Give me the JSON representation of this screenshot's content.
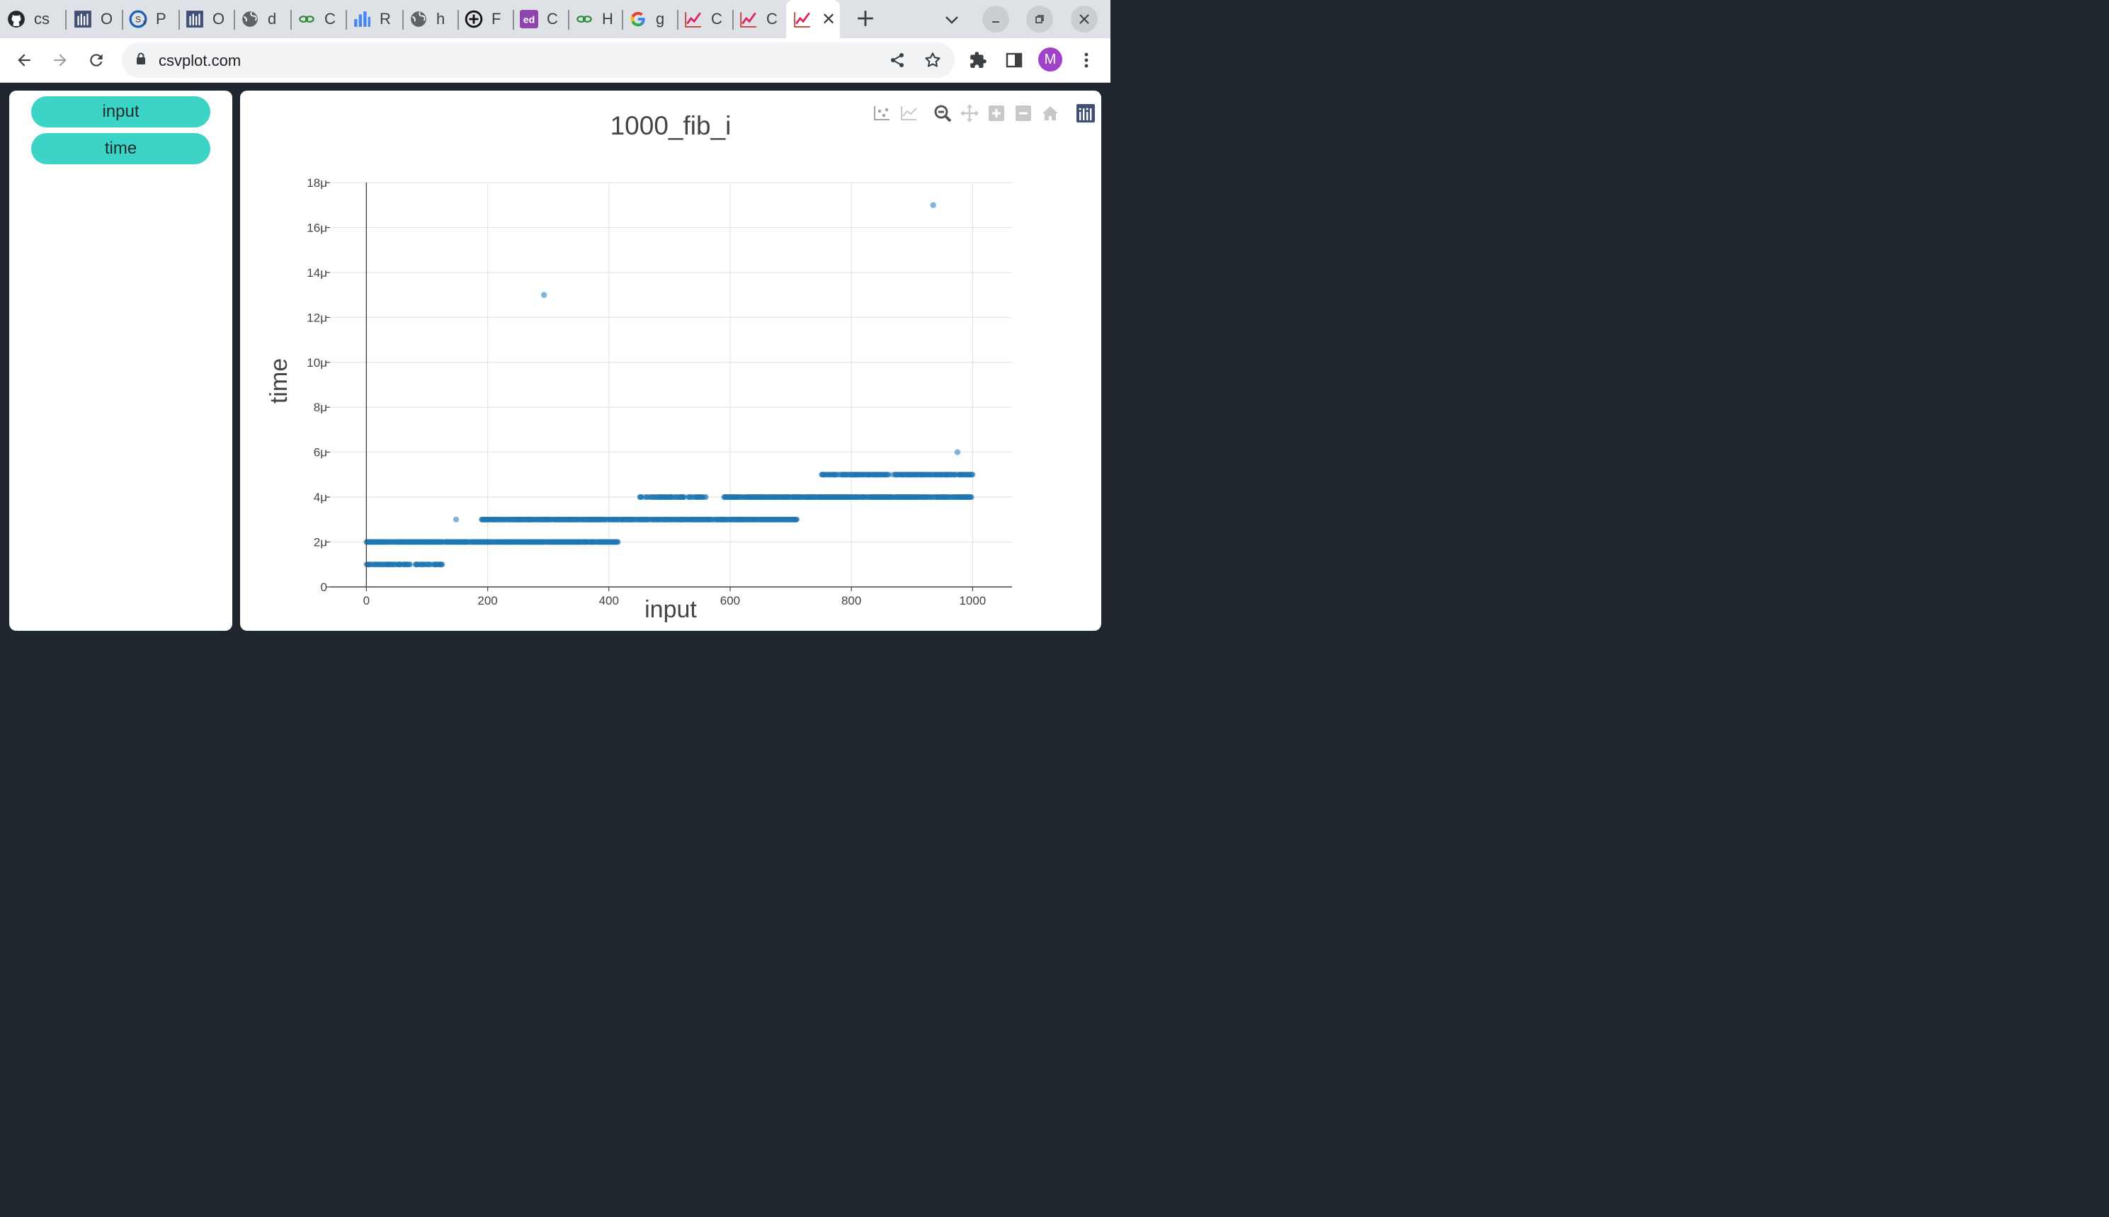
{
  "browser": {
    "tabs": [
      {
        "title": "cs",
        "icon": "github-icon"
      },
      {
        "title": "O",
        "icon": "grid-logo-icon"
      },
      {
        "title": "P",
        "icon": "globe-x-icon"
      },
      {
        "title": "O",
        "icon": "grid-logo-icon"
      },
      {
        "title": "d",
        "icon": "globe-icon"
      },
      {
        "title": "C",
        "icon": "link-green-icon"
      },
      {
        "title": "R",
        "icon": "bar-chart-icon"
      },
      {
        "title": "h",
        "icon": "globe-icon"
      },
      {
        "title": "F",
        "icon": "plus-circle-icon"
      },
      {
        "title": "C",
        "icon": "ed-icon"
      },
      {
        "title": "H",
        "icon": "link-green-icon"
      },
      {
        "title": "g",
        "icon": "google-icon"
      },
      {
        "title": "C",
        "icon": "csvplot-icon"
      },
      {
        "title": "C",
        "icon": "csvplot-icon"
      },
      {
        "title": "",
        "icon": "csvplot-icon",
        "active": true
      }
    ],
    "url": "csvplot.com",
    "profile_initial": "M",
    "accent_color": "#a142c9"
  },
  "sidebar": {
    "columns": [
      "input",
      "time"
    ],
    "button_color": "#3dd4c8"
  },
  "chart_data": {
    "type": "scatter",
    "title": "1000_fib_i",
    "xlabel": "input",
    "ylabel": "time",
    "xlim": [
      -60,
      1065
    ],
    "ylim": [
      0,
      18
    ],
    "x_ticks": [
      0,
      200,
      400,
      600,
      800,
      1000
    ],
    "y_ticks": [
      0,
      2,
      4,
      6,
      8,
      10,
      12,
      14,
      16,
      18
    ],
    "y_tick_labels": [
      "0",
      "2μ",
      "4μ",
      "6μ",
      "8μ",
      "10μ",
      "12μ",
      "14μ",
      "16μ",
      "18μ"
    ],
    "marker_color": "#1f77b4",
    "grid": true,
    "segments": [
      {
        "y": 1,
        "x_from": 0,
        "x_to": 125,
        "density": 0.55
      },
      {
        "y": 2,
        "x_from": 0,
        "x_to": 415,
        "density": 0.85
      },
      {
        "y": 3,
        "x_from": 190,
        "x_to": 710,
        "density": 0.85
      },
      {
        "y": 4,
        "x_from": 450,
        "x_to": 560,
        "density": 0.6
      },
      {
        "y": 4,
        "x_from": 590,
        "x_to": 998,
        "density": 0.85
      },
      {
        "y": 5,
        "x_from": 750,
        "x_to": 1000,
        "density": 0.7
      }
    ],
    "outliers": [
      {
        "x": 148,
        "y": 3
      },
      {
        "x": 293,
        "y": 13
      },
      {
        "x": 935,
        "y": 17
      },
      {
        "x": 975,
        "y": 6
      }
    ]
  }
}
